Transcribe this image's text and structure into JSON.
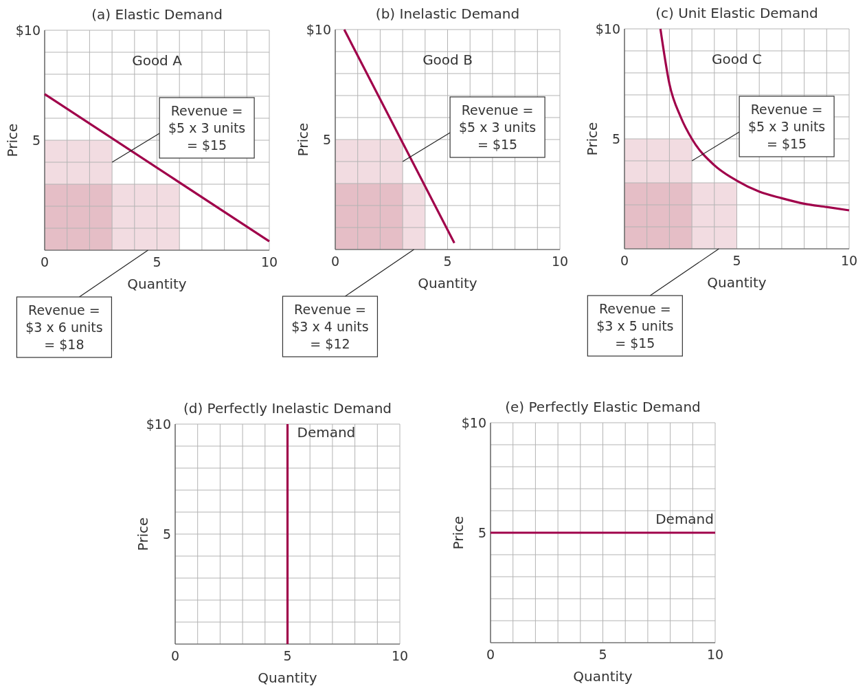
{
  "chart_data": [
    {
      "type": "line",
      "title": "(a) Elastic Demand",
      "xlabel": "Quantity",
      "ylabel": "Price",
      "xlim": [
        0,
        10
      ],
      "ylim": [
        0,
        10
      ],
      "xticks": [
        0,
        {
          "value": 1,
          "label": null
        },
        {
          "value": 2,
          "label": null
        },
        {
          "value": 3,
          "label": null
        },
        {
          "value": 4,
          "label": null
        },
        5,
        {
          "value": 6,
          "label": null
        },
        {
          "value": 7,
          "label": null
        },
        {
          "value": 8,
          "label": null
        },
        {
          "value": 9,
          "label": null
        },
        10
      ],
      "yticks": [
        {
          "value": 0,
          "label": null
        },
        {
          "value": 1,
          "label": null
        },
        {
          "value": 2,
          "label": null
        },
        {
          "value": 3,
          "label": null
        },
        {
          "value": 4,
          "label": null
        },
        {
          "value": 5,
          "label": "5"
        },
        {
          "value": 6,
          "label": null
        },
        {
          "value": 7,
          "label": null
        },
        {
          "value": 8,
          "label": null
        },
        {
          "value": 9,
          "label": null
        },
        {
          "value": 10,
          "label": "$10"
        }
      ],
      "grid": true,
      "series": [
        {
          "type": "area",
          "color": "#f2dce1",
          "x": [
            0,
            3
          ],
          "values": [
            5,
            5
          ]
        },
        {
          "type": "area",
          "color": "#f2dce1",
          "x": [
            0,
            6
          ],
          "values": [
            3,
            3
          ]
        },
        {
          "color": "#a0004a",
          "x": [
            0,
            10
          ],
          "values": [
            7.1,
            0.4
          ]
        }
      ],
      "annotations": [
        "Good A",
        {
          "text": "Revenue =\n$5 x 3 units\n= $15",
          "x": 3,
          "y": 4
        },
        {
          "text": "Revenue =\n$3 x 6 units\n= $18",
          "x": 4.6,
          "y": 0
        }
      ]
    },
    {
      "type": "line",
      "title": "(b) Inelastic Demand",
      "xlabel": "Quantity",
      "ylabel": "Price",
      "xlim": [
        0,
        10
      ],
      "ylim": [
        0,
        10
      ],
      "xticks": [
        0,
        {
          "value": 1,
          "label": null
        },
        {
          "value": 2,
          "label": null
        },
        {
          "value": 3,
          "label": null
        },
        {
          "value": 4,
          "label": null
        },
        5,
        {
          "value": 6,
          "label": null
        },
        {
          "value": 7,
          "label": null
        },
        {
          "value": 8,
          "label": null
        },
        {
          "value": 9,
          "label": null
        },
        10
      ],
      "yticks": [
        {
          "value": 0,
          "label": null
        },
        {
          "value": 1,
          "label": null
        },
        {
          "value": 2,
          "label": null
        },
        {
          "value": 3,
          "label": null
        },
        {
          "value": 4,
          "label": null
        },
        {
          "value": 5,
          "label": "5"
        },
        {
          "value": 6,
          "label": null
        },
        {
          "value": 7,
          "label": null
        },
        {
          "value": 8,
          "label": null
        },
        {
          "value": 9,
          "label": null
        },
        {
          "value": 10,
          "label": "$10"
        }
      ],
      "grid": true,
      "series": [
        {
          "type": "area",
          "color": "#f2dce1",
          "x": [
            0,
            3
          ],
          "values": [
            5,
            5
          ]
        },
        {
          "type": "area",
          "color": "#f2dce1",
          "x": [
            0,
            4
          ],
          "values": [
            3,
            3
          ]
        },
        {
          "color": "#a0004a",
          "x": [
            0.4,
            5.3
          ],
          "values": [
            10,
            0.3
          ]
        }
      ],
      "annotations": [
        "Good B",
        {
          "text": "Revenue =\n$5 x 3 units\n= $15",
          "x": 3,
          "y": 4
        },
        {
          "text": "Revenue =\n$3 x 4 units\n= $12",
          "x": 3.5,
          "y": 0
        }
      ]
    },
    {
      "type": "line",
      "title": "(c) Unit Elastic Demand",
      "xlabel": "Quantity",
      "ylabel": "Price",
      "xlim": [
        0,
        10
      ],
      "ylim": [
        0,
        10
      ],
      "xticks": [
        0,
        {
          "value": 1,
          "label": null
        },
        {
          "value": 2,
          "label": null
        },
        {
          "value": 3,
          "label": null
        },
        {
          "value": 4,
          "label": null
        },
        5,
        {
          "value": 6,
          "label": null
        },
        {
          "value": 7,
          "label": null
        },
        {
          "value": 8,
          "label": null
        },
        {
          "value": 9,
          "label": null
        },
        10
      ],
      "yticks": [
        {
          "value": 0,
          "label": null
        },
        {
          "value": 1,
          "label": null
        },
        {
          "value": 2,
          "label": null
        },
        {
          "value": 3,
          "label": null
        },
        {
          "value": 4,
          "label": null
        },
        {
          "value": 5,
          "label": "5"
        },
        {
          "value": 6,
          "label": null
        },
        {
          "value": 7,
          "label": null
        },
        {
          "value": 8,
          "label": null
        },
        {
          "value": 9,
          "label": null
        },
        {
          "value": 10,
          "label": "$10"
        }
      ],
      "grid": true,
      "series": [
        {
          "type": "area",
          "color": "#f2dce1",
          "x": [
            0,
            3
          ],
          "values": [
            5,
            5
          ]
        },
        {
          "type": "area",
          "color": "#f2dce1",
          "x": [
            0,
            5
          ],
          "values": [
            3,
            3
          ]
        },
        {
          "color": "#a0004a",
          "x": [
            1.6,
            2,
            2.5,
            3,
            4,
            5,
            6,
            7,
            8,
            9,
            10
          ],
          "values": [
            10,
            7.5,
            6,
            5,
            3.8,
            3.1,
            2.6,
            2.3,
            2.05,
            1.9,
            1.75
          ]
        }
      ],
      "annotations": [
        "Good C",
        {
          "text": "Revenue =\n$5 x 3 units\n= $15",
          "x": 3,
          "y": 4
        },
        {
          "text": "Revenue =\n$3 x 5 units\n= $15",
          "x": 4.2,
          "y": 0
        }
      ]
    },
    {
      "type": "line",
      "title": "(d) Perfectly Inelastic Demand",
      "xlabel": "Quantity",
      "ylabel": "Price",
      "xlim": [
        0,
        10
      ],
      "ylim": [
        0,
        10
      ],
      "xticks": [
        0,
        {
          "value": 1,
          "label": null
        },
        {
          "value": 2,
          "label": null
        },
        {
          "value": 3,
          "label": null
        },
        {
          "value": 4,
          "label": null
        },
        5,
        {
          "value": 6,
          "label": null
        },
        {
          "value": 7,
          "label": null
        },
        {
          "value": 8,
          "label": null
        },
        {
          "value": 9,
          "label": null
        },
        10
      ],
      "yticks": [
        {
          "value": 0,
          "label": null
        },
        {
          "value": 1,
          "label": null
        },
        {
          "value": 2,
          "label": null
        },
        {
          "value": 3,
          "label": null
        },
        {
          "value": 4,
          "label": null
        },
        {
          "value": 5,
          "label": "5"
        },
        {
          "value": 6,
          "label": null
        },
        {
          "value": 7,
          "label": null
        },
        {
          "value": 8,
          "label": null
        },
        {
          "value": 9,
          "label": null
        },
        {
          "value": 10,
          "label": "$10"
        }
      ],
      "grid": true,
      "series": [
        {
          "color": "#a0004a",
          "x": [
            5,
            5
          ],
          "values": [
            0,
            10
          ]
        }
      ],
      "annotations": [
        "Demand"
      ]
    },
    {
      "type": "line",
      "title": "(e) Perfectly Elastic Demand",
      "xlabel": "Quantity",
      "ylabel": "Price",
      "xlim": [
        0,
        10
      ],
      "ylim": [
        0,
        10
      ],
      "xticks": [
        0,
        {
          "value": 1,
          "label": null
        },
        {
          "value": 2,
          "label": null
        },
        {
          "value": 3,
          "label": null
        },
        {
          "value": 4,
          "label": null
        },
        5,
        {
          "value": 6,
          "label": null
        },
        {
          "value": 7,
          "label": null
        },
        {
          "value": 8,
          "label": null
        },
        {
          "value": 9,
          "label": null
        },
        10
      ],
      "yticks": [
        {
          "value": 0,
          "label": null
        },
        {
          "value": 1,
          "label": null
        },
        {
          "value": 2,
          "label": null
        },
        {
          "value": 3,
          "label": null
        },
        {
          "value": 4,
          "label": null
        },
        {
          "value": 5,
          "label": "5"
        },
        {
          "value": 6,
          "label": null
        },
        {
          "value": 7,
          "label": null
        },
        {
          "value": 8,
          "label": null
        },
        {
          "value": 9,
          "label": null
        },
        {
          "value": 10,
          "label": "$10"
        }
      ],
      "grid": true,
      "series": [
        {
          "color": "#a0004a",
          "x": [
            0,
            10
          ],
          "values": [
            5,
            5
          ]
        }
      ],
      "annotations": [
        "Demand"
      ]
    }
  ]
}
